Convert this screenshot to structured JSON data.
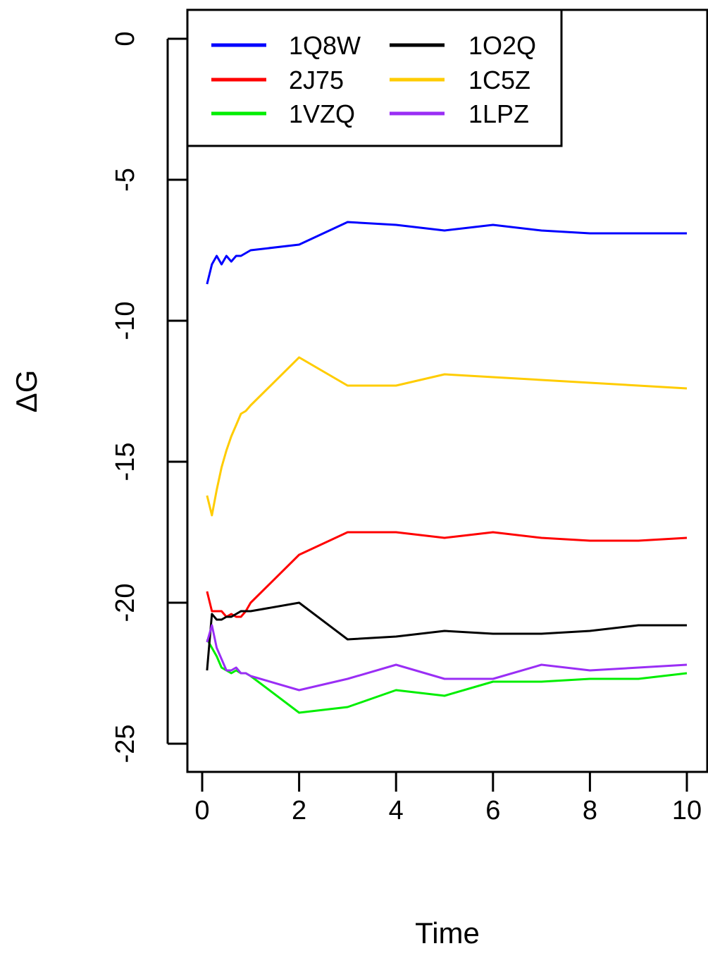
{
  "chart_data": {
    "type": "line",
    "xlabel": "Time",
    "ylabel": "ΔG",
    "xlim": [
      0,
      10
    ],
    "ylim": [
      -26,
      1
    ],
    "xticks": [
      "0",
      "2",
      "4",
      "6",
      "8",
      "10"
    ],
    "yticks": [
      "0",
      "-5",
      "-10",
      "-15",
      "-20",
      "-25"
    ],
    "legend_position": "top-left",
    "grid": false,
    "series": [
      {
        "name": "1Q8W",
        "color": "#0000ff",
        "x": [
          0.1,
          0.2,
          0.3,
          0.4,
          0.5,
          0.6,
          0.7,
          0.8,
          0.9,
          1,
          2,
          3,
          4,
          5,
          6,
          7,
          8,
          9,
          10
        ],
        "y": [
          -8.7,
          -8.0,
          -7.7,
          -8.0,
          -7.7,
          -7.9,
          -7.7,
          -7.7,
          -7.6,
          -7.5,
          -7.3,
          -6.5,
          -6.6,
          -6.8,
          -6.6,
          -6.8,
          -6.9,
          -6.9,
          -6.9
        ]
      },
      {
        "name": "2J75",
        "color": "#ff0000",
        "x": [
          0.1,
          0.2,
          0.3,
          0.4,
          0.5,
          0.6,
          0.7,
          0.8,
          0.9,
          1,
          2,
          3,
          4,
          5,
          6,
          7,
          8,
          9,
          10
        ],
        "y": [
          -19.6,
          -20.3,
          -20.3,
          -20.3,
          -20.5,
          -20.4,
          -20.5,
          -20.5,
          -20.3,
          -20.0,
          -18.3,
          -17.5,
          -17.5,
          -17.7,
          -17.5,
          -17.7,
          -17.8,
          -17.8,
          -17.7
        ]
      },
      {
        "name": "1VZQ",
        "color": "#00ee00",
        "x": [
          0.1,
          0.2,
          0.3,
          0.4,
          0.5,
          0.6,
          0.7,
          0.8,
          0.9,
          1,
          2,
          3,
          4,
          5,
          6,
          7,
          8,
          9,
          10
        ],
        "y": [
          -21.3,
          -21.6,
          -21.9,
          -22.3,
          -22.4,
          -22.5,
          -22.4,
          -22.5,
          -22.5,
          -22.6,
          -23.9,
          -23.7,
          -23.1,
          -23.3,
          -22.8,
          -22.8,
          -22.7,
          -22.7,
          -22.5
        ]
      },
      {
        "name": "1O2Q",
        "color": "#000000",
        "x": [
          0.1,
          0.2,
          0.3,
          0.4,
          0.5,
          0.6,
          0.7,
          0.8,
          0.9,
          1,
          2,
          3,
          4,
          5,
          6,
          7,
          8,
          9,
          10
        ],
        "y": [
          -22.4,
          -20.4,
          -20.6,
          -20.6,
          -20.5,
          -20.5,
          -20.4,
          -20.3,
          -20.3,
          -20.3,
          -20.0,
          -21.3,
          -21.2,
          -21.0,
          -21.1,
          -21.1,
          -21.0,
          -20.8,
          -20.8
        ]
      },
      {
        "name": "1C5Z",
        "color": "#ffcc00",
        "x": [
          0.1,
          0.2,
          0.3,
          0.4,
          0.5,
          0.6,
          0.7,
          0.8,
          0.9,
          1,
          2,
          3,
          4,
          5,
          6,
          7,
          8,
          9,
          10
        ],
        "y": [
          -16.2,
          -16.9,
          -16.0,
          -15.2,
          -14.6,
          -14.1,
          -13.7,
          -13.3,
          -13.2,
          -13.0,
          -11.3,
          -12.3,
          -12.3,
          -11.9,
          -12.0,
          -12.1,
          -12.2,
          -12.3,
          -12.4
        ]
      },
      {
        "name": "1LPZ",
        "color": "#9a2ef5",
        "x": [
          0.1,
          0.2,
          0.3,
          0.4,
          0.5,
          0.6,
          0.7,
          0.8,
          0.9,
          1,
          2,
          3,
          4,
          5,
          6,
          7,
          8,
          9,
          10
        ],
        "y": [
          -21.4,
          -20.8,
          -21.6,
          -22.0,
          -22.4,
          -22.4,
          -22.3,
          -22.5,
          -22.5,
          -22.6,
          -23.1,
          -22.7,
          -22.2,
          -22.7,
          -22.7,
          -22.2,
          -22.4,
          -22.3,
          -22.2
        ]
      }
    ]
  }
}
